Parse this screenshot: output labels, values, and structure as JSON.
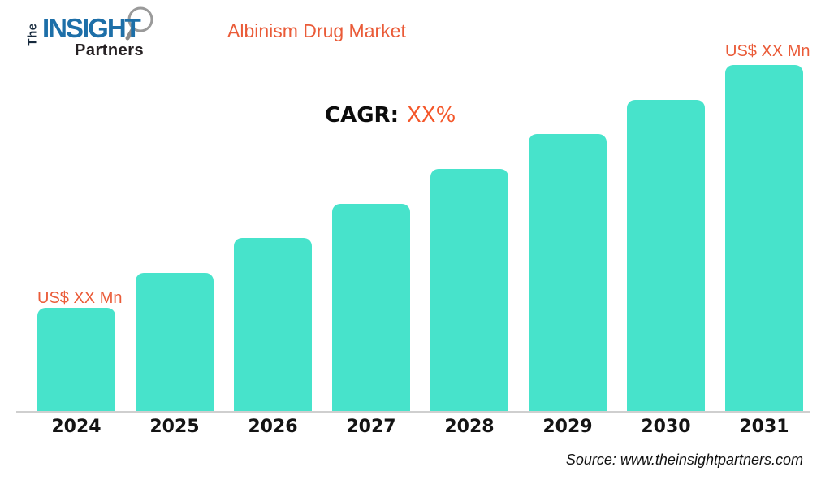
{
  "logo": {
    "the": "The",
    "insight": "INSIGHT",
    "partners": "Partners",
    "blue": "#1d6fa8",
    "dark": "#262123"
  },
  "header": {
    "title": "Albinism Drug Market",
    "title_color": "#ea5b38"
  },
  "cagr": {
    "label": "CAGR:",
    "value": "XX%"
  },
  "annotations": {
    "first_bar_value": "US$ XX Mn",
    "last_bar_value": "US$ XX Mn"
  },
  "footer": {
    "source": "Source: www.theinsightpartners.com"
  },
  "chart_data": {
    "type": "bar",
    "title": "Albinism Drug Market",
    "categories": [
      "2024",
      "2025",
      "2026",
      "2027",
      "2028",
      "2029",
      "2030",
      "2031"
    ],
    "values_relative": [
      0.3,
      0.4,
      0.5,
      0.6,
      0.7,
      0.8,
      0.9,
      1.0
    ],
    "value_labels_shown": {
      "2024": "US$ XX Mn",
      "2031": "US$ XX Mn"
    },
    "xlabel": "",
    "ylabel": "",
    "y_axis_visible": false,
    "grid": false,
    "legend": false,
    "bar_color": "#47e3cb",
    "accent_color": "#ea5b38"
  }
}
